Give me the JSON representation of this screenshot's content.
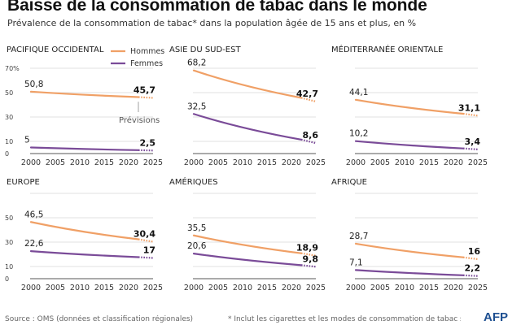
{
  "title": "Baisse de la consommation de tabac dans le monde",
  "subtitle": "Prévalence de la consommation de tabac* dans la population âgée de 15 ans et plus, en %",
  "legend": {
    "hommes": "Hommes",
    "femmes": "Femmes"
  },
  "forecast_label": "Prévisions",
  "colors": {
    "hommes": "#f0a066",
    "femmes": "#7a4b98",
    "grid": "#d6d6d6"
  },
  "footer": {
    "source": "Source : OMS (données et classification régionales)",
    "note": "* Inclut les cigarettes et les modes de consommation de tabac sans fumée"
  },
  "logo": "AFP",
  "chart_data": [
    {
      "type": "line",
      "region": "PACIFIQUE OCCIDENTAL",
      "x": [
        2000,
        2005,
        2010,
        2015,
        2020,
        2025
      ],
      "xlim": [
        2000,
        2025
      ],
      "ylim": [
        0,
        70
      ],
      "yticks": [
        "0",
        "10",
        "30",
        "50",
        "70%"
      ],
      "actual_end": 2022,
      "start_year": 2000,
      "end_year": 2025,
      "series": [
        {
          "name": "Hommes",
          "start": 50.8,
          "end": 45.7,
          "start_label": "50,8",
          "end_label": "45,7"
        },
        {
          "name": "Femmes",
          "start": 5,
          "end": 2.5,
          "start_label": "5",
          "end_label": "2,5"
        }
      ]
    },
    {
      "type": "line",
      "region": "ASIE DU SUD-EST",
      "x": [
        2000,
        2005,
        2010,
        2015,
        2020,
        2025
      ],
      "xlim": [
        2000,
        2025
      ],
      "ylim": [
        0,
        70
      ],
      "actual_end": 2022,
      "start_year": 2000,
      "end_year": 2025,
      "series": [
        {
          "name": "Hommes",
          "start": 68.2,
          "end": 42.7,
          "start_label": "68,2",
          "end_label": "42,7"
        },
        {
          "name": "Femmes",
          "start": 32.5,
          "end": 8.6,
          "start_label": "32,5",
          "end_label": "8,6"
        }
      ]
    },
    {
      "type": "line",
      "region": "MÉDITERRANÉE ORIENTALE",
      "x": [
        2000,
        2005,
        2010,
        2015,
        2020,
        2025
      ],
      "xlim": [
        2000,
        2025
      ],
      "ylim": [
        0,
        70
      ],
      "actual_end": 2022,
      "start_year": 2000,
      "end_year": 2025,
      "series": [
        {
          "name": "Hommes",
          "start": 44.1,
          "end": 31.1,
          "start_label": "44,1",
          "end_label": "31,1"
        },
        {
          "name": "Femmes",
          "start": 10.2,
          "end": 3.4,
          "start_label": "10,2",
          "end_label": "3,4"
        }
      ]
    },
    {
      "type": "line",
      "region": "EUROPE",
      "x": [
        2000,
        2005,
        2010,
        2015,
        2020,
        2025
      ],
      "xlim": [
        2000,
        2025
      ],
      "ylim": [
        0,
        70
      ],
      "yticks": [
        "0",
        "10",
        "30",
        "50"
      ],
      "actual_end": 2022,
      "start_year": 2000,
      "end_year": 2025,
      "series": [
        {
          "name": "Hommes",
          "start": 46.5,
          "end": 30.4,
          "start_label": "46,5",
          "end_label": "30,4"
        },
        {
          "name": "Femmes",
          "start": 22.6,
          "end": 17,
          "start_label": "22,6",
          "end_label": "17"
        }
      ]
    },
    {
      "type": "line",
      "region": "AMÉRIQUES",
      "x": [
        2000,
        2005,
        2010,
        2015,
        2020,
        2025
      ],
      "xlim": [
        2000,
        2025
      ],
      "ylim": [
        0,
        70
      ],
      "actual_end": 2022,
      "start_year": 2000,
      "end_year": 2025,
      "series": [
        {
          "name": "Hommes",
          "start": 35.5,
          "end": 18.9,
          "start_label": "35,5",
          "end_label": "18,9"
        },
        {
          "name": "Femmes",
          "start": 20.6,
          "end": 9.8,
          "start_label": "20,6",
          "end_label": "9,8"
        }
      ]
    },
    {
      "type": "line",
      "region": "AFRIQUE",
      "x": [
        2000,
        2005,
        2010,
        2015,
        2020,
        2025
      ],
      "xlim": [
        2000,
        2025
      ],
      "ylim": [
        0,
        70
      ],
      "actual_end": 2022,
      "start_year": 2000,
      "end_year": 2025,
      "series": [
        {
          "name": "Hommes",
          "start": 28.7,
          "end": 16,
          "start_label": "28,7",
          "end_label": "16"
        },
        {
          "name": "Femmes",
          "start": 7.1,
          "end": 2.2,
          "start_label": "7,1",
          "end_label": "2,2"
        }
      ]
    }
  ]
}
